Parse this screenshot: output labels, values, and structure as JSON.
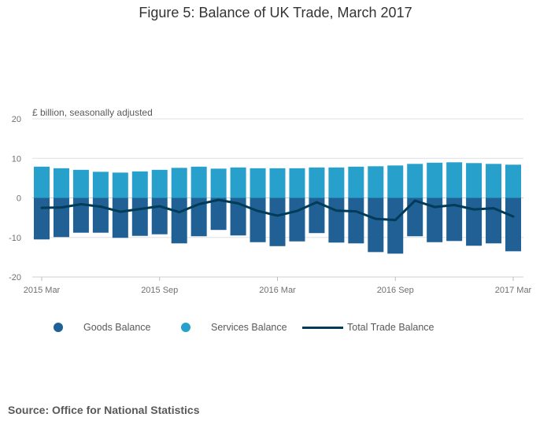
{
  "title": "Figure 5: Balance of UK Trade, March 2017",
  "source": "Source: Office for National Statistics",
  "colors": {
    "goods": "#206095",
    "services": "#27a0cc",
    "total": "#003c57",
    "grid": "#e0e0e0",
    "axis_text": "#707070"
  },
  "legend": [
    {
      "label": "Goods Balance",
      "symbol": "dot",
      "series": "goods"
    },
    {
      "label": "Services Balance",
      "symbol": "dot",
      "series": "services"
    },
    {
      "label": "Total Trade Balance",
      "symbol": "line",
      "series": "total"
    }
  ],
  "chart_data": {
    "type": "bar",
    "stacked": true,
    "title": "Figure 5: Balance of UK Trade, March 2017",
    "ylabel": "£ billion, seasonally adjusted",
    "ylim": [
      -20,
      20
    ],
    "yticks": [
      20,
      10,
      0,
      -10,
      -20
    ],
    "grid": true,
    "legend_position": "bottom",
    "x_tick_labels": [
      {
        "index": 0,
        "label": "2015 Mar"
      },
      {
        "index": 6,
        "label": "2015 Sep"
      },
      {
        "index": 12,
        "label": "2016 Mar"
      },
      {
        "index": 18,
        "label": "2016 Sep"
      },
      {
        "index": 24,
        "label": "2017 Mar"
      }
    ],
    "categories": [
      "2015 Mar",
      "2015 Apr",
      "2015 May",
      "2015 Jun",
      "2015 Jul",
      "2015 Aug",
      "2015 Sep",
      "2015 Oct",
      "2015 Nov",
      "2015 Dec",
      "2016 Jan",
      "2016 Feb",
      "2016 Mar",
      "2016 Apr",
      "2016 May",
      "2016 Jun",
      "2016 Jul",
      "2016 Aug",
      "2016 Sep",
      "2016 Oct",
      "2016 Nov",
      "2016 Dec",
      "2017 Jan",
      "2017 Feb",
      "2017 Mar"
    ],
    "series": [
      {
        "name": "Goods Balance",
        "kind": "bar",
        "values": [
          -10.5,
          -9.9,
          -8.8,
          -8.8,
          -10.1,
          -9.6,
          -9.2,
          -11.5,
          -9.7,
          -8.1,
          -9.5,
          -11.2,
          -12.2,
          -11.0,
          -8.9,
          -11.3,
          -11.5,
          -13.7,
          -14.1,
          -9.7,
          -11.2,
          -10.9,
          -12.1,
          -11.5,
          -13.5
        ]
      },
      {
        "name": "Services Balance",
        "kind": "bar",
        "values": [
          7.9,
          7.5,
          7.1,
          6.6,
          6.4,
          6.7,
          7.1,
          7.6,
          7.9,
          7.4,
          7.7,
          7.5,
          7.5,
          7.5,
          7.7,
          7.7,
          7.9,
          8.0,
          8.2,
          8.6,
          8.9,
          9.0,
          8.8,
          8.6,
          8.4
        ]
      },
      {
        "name": "Total Trade Balance",
        "kind": "line",
        "values": [
          -2.5,
          -2.4,
          -1.6,
          -2.2,
          -3.5,
          -2.8,
          -2.1,
          -3.6,
          -1.6,
          -0.5,
          -1.4,
          -3.3,
          -4.5,
          -3.3,
          -1.1,
          -3.2,
          -3.4,
          -5.3,
          -5.6,
          -0.7,
          -2.3,
          -1.8,
          -2.9,
          -2.6,
          -4.7
        ]
      }
    ]
  }
}
